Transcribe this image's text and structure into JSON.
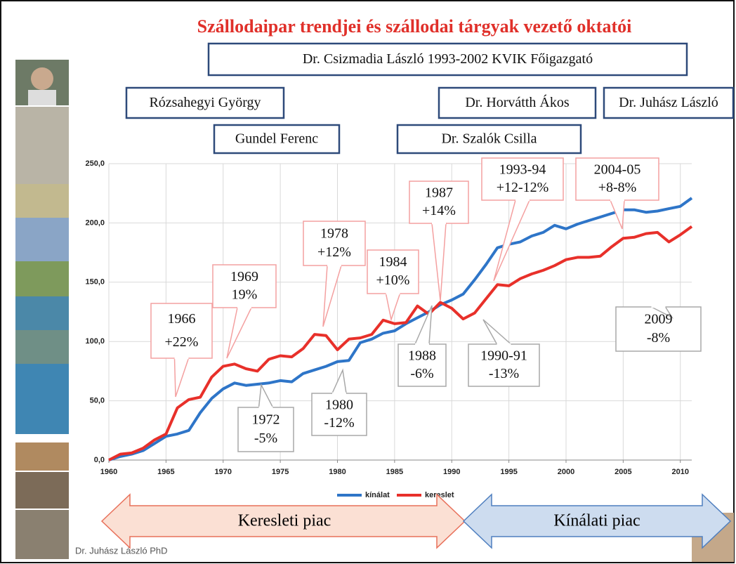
{
  "chart_data": {
    "type": "line",
    "title": "Szállodaipar trendjei és szállodai tárgyak vezető oktatói",
    "x": [
      1960,
      1961,
      1962,
      1963,
      1964,
      1965,
      1966,
      1967,
      1968,
      1969,
      1970,
      1971,
      1972,
      1973,
      1974,
      1975,
      1976,
      1977,
      1978,
      1979,
      1980,
      1981,
      1982,
      1983,
      1984,
      1985,
      1986,
      1987,
      1988,
      1989,
      1990,
      1991,
      1992,
      1993,
      1994,
      1995,
      1996,
      1997,
      1998,
      1999,
      2000,
      2001,
      2002,
      2003,
      2004,
      2005,
      2006,
      2007,
      2008,
      2009,
      2010,
      2011
    ],
    "series": [
      {
        "name": "kínálat",
        "color": "#2e75c8",
        "values": [
          0,
          3,
          5,
          8,
          14,
          20,
          22,
          25,
          40,
          52,
          60,
          65,
          63,
          64,
          65,
          67,
          66,
          73,
          76,
          79,
          83,
          84,
          99,
          102,
          107,
          109,
          115,
          120,
          125,
          131,
          135,
          140,
          152,
          165,
          179,
          182,
          184,
          189,
          192,
          198,
          195,
          199,
          202,
          205,
          208,
          211,
          211,
          209,
          210,
          212,
          214,
          221
        ]
      },
      {
        "name": "kereslet",
        "color": "#e8302a",
        "values": [
          0,
          5,
          6,
          10,
          17,
          22,
          44,
          51,
          53,
          70,
          79,
          81,
          77,
          75,
          85,
          88,
          87,
          94,
          106,
          105,
          93,
          102,
          103,
          106,
          118,
          115,
          116,
          130,
          123,
          133,
          128,
          119,
          124,
          136,
          148,
          147,
          153,
          157,
          160,
          164,
          169,
          171,
          171,
          172,
          180,
          187,
          188,
          191,
          192,
          184,
          190,
          197
        ]
      }
    ],
    "xlim": [
      1960,
      2011
    ],
    "xticks": [
      1960,
      1965,
      1970,
      1975,
      1980,
      1985,
      1990,
      1995,
      2000,
      2005,
      2010
    ],
    "ylim": [
      0,
      250
    ],
    "yticks": [
      {
        "value": 0,
        "label": "0,0"
      },
      {
        "value": 50,
        "label": "50,0"
      },
      {
        "value": 100,
        "label": "100,0"
      },
      {
        "value": 150,
        "label": "150,0"
      },
      {
        "value": 200,
        "label": "200,0"
      },
      {
        "value": 250,
        "label": "250,0"
      }
    ],
    "grid": true,
    "annotations": [
      {
        "lines": [
          "1966",
          "+22%"
        ]
      },
      {
        "lines": [
          "1969",
          "19%"
        ]
      },
      {
        "lines": [
          "1978",
          "+12%"
        ]
      },
      {
        "lines": [
          "1984",
          "+10%"
        ]
      },
      {
        "lines": [
          "1987",
          "+14%"
        ]
      },
      {
        "lines": [
          "1993-94",
          "+12-12%"
        ]
      },
      {
        "lines": [
          "2004-05",
          "+8-8%"
        ]
      },
      {
        "lines": [
          "1972",
          "-5%"
        ]
      },
      {
        "lines": [
          "1980",
          "-12%"
        ]
      },
      {
        "lines": [
          "1988",
          "-6%"
        ]
      },
      {
        "lines": [
          "1990-91",
          "-13%"
        ]
      },
      {
        "lines": [
          "2009",
          "-8%"
        ]
      }
    ]
  },
  "header": {
    "boxes": [
      "Dr. Csizmadia László 1993-2002 KVIK Főigazgató",
      "Rózsahegyi György",
      "Gundel Ferenc",
      "Dr. Horvátth Ákos",
      "Dr. Juhász László",
      "Dr. Szalók Csilla"
    ]
  },
  "market_arrows": [
    "Keresleti piac",
    "Kínálati piac"
  ],
  "footer": "Dr. Juhász László PhD"
}
